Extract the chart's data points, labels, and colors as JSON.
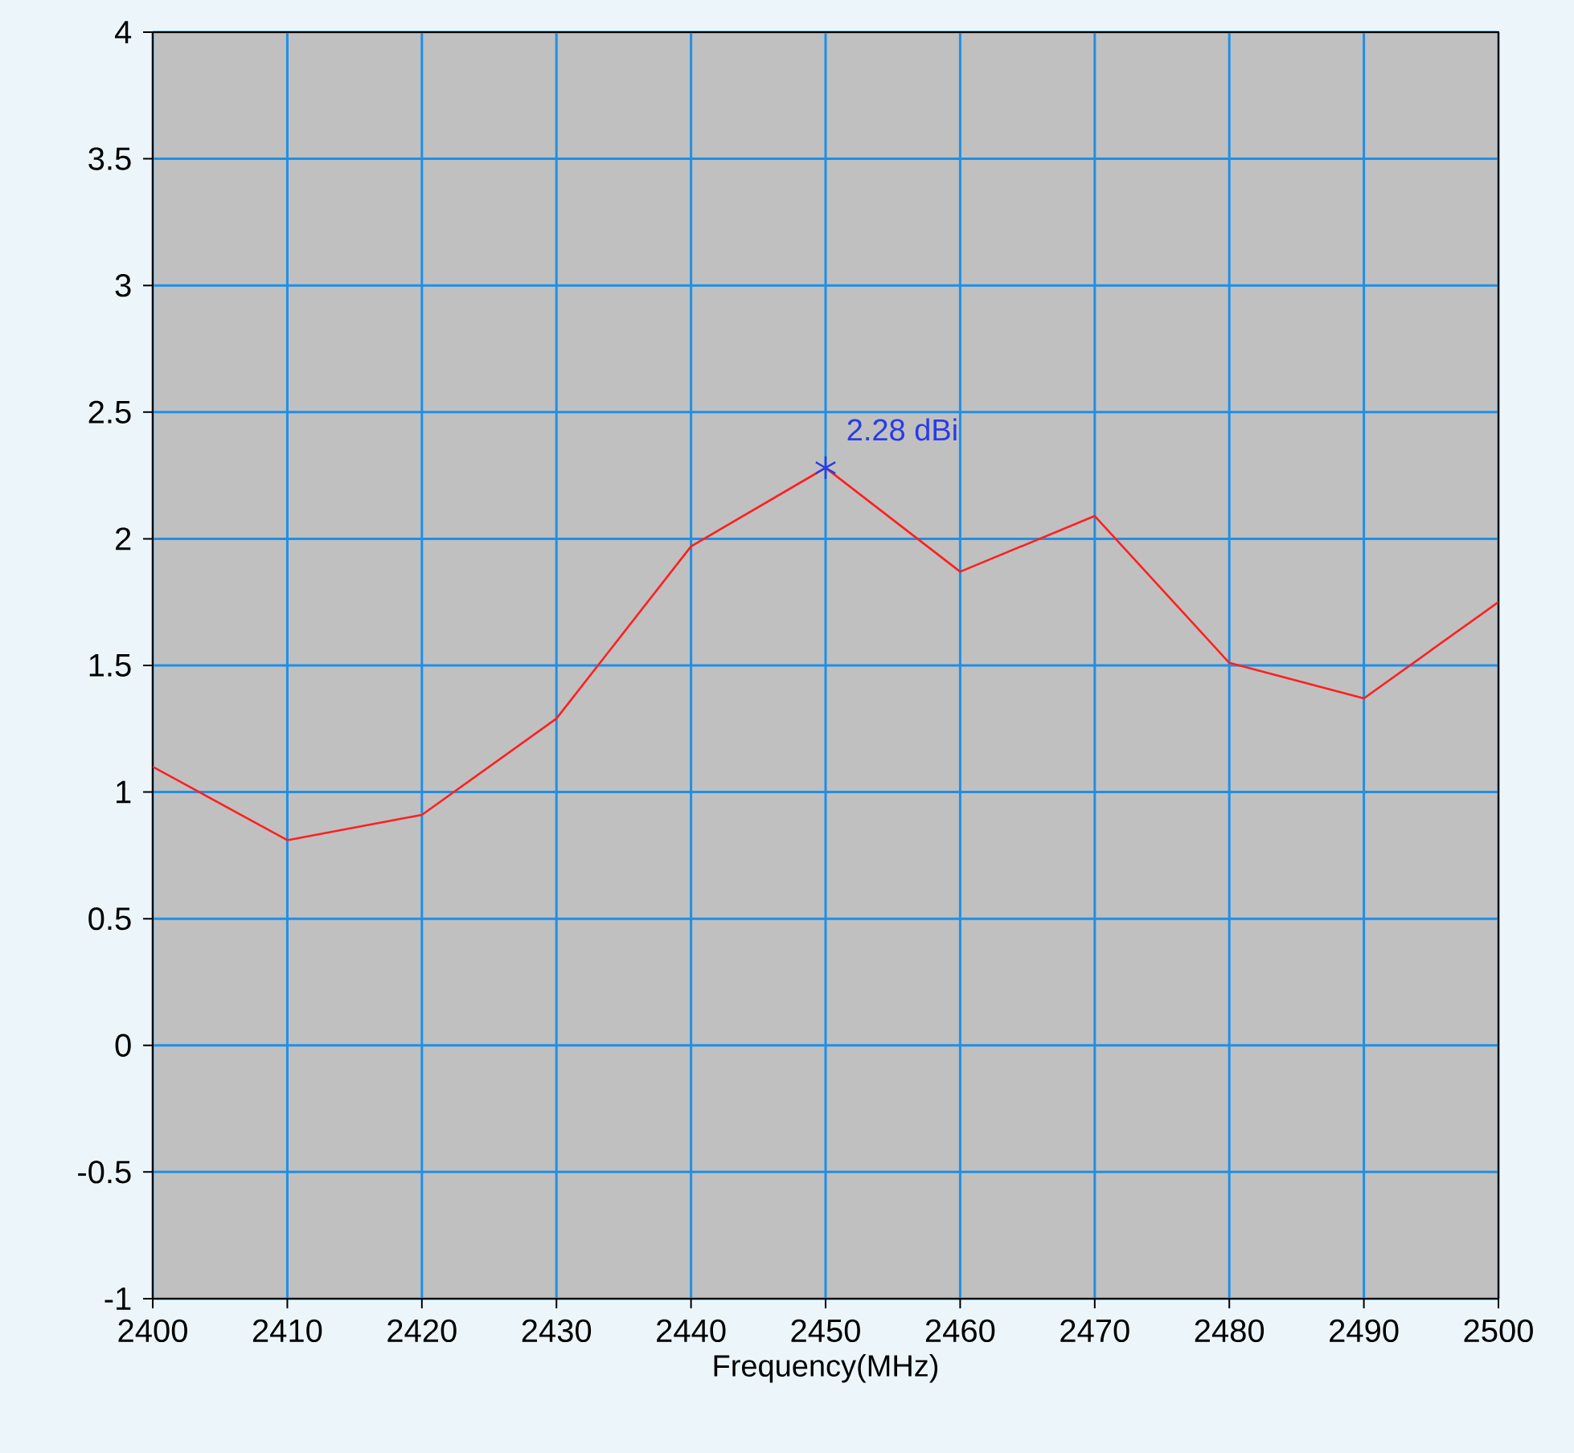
{
  "chart_data": {
    "type": "line",
    "xlabel": "Frequency(MHz)",
    "x": [
      2400,
      2410,
      2420,
      2430,
      2440,
      2450,
      2460,
      2470,
      2480,
      2490,
      2500
    ],
    "series": [
      {
        "color": "#ff2020",
        "values": [
          1.1,
          0.81,
          0.91,
          1.29,
          1.97,
          2.28,
          1.87,
          2.09,
          1.51,
          1.37,
          1.75
        ]
      }
    ],
    "xlim": [
      2400,
      2500
    ],
    "xticks": [
      2400,
      2410,
      2420,
      2430,
      2440,
      2450,
      2460,
      2470,
      2480,
      2490,
      2500
    ],
    "ylim": [
      -1,
      4
    ],
    "yticks": [
      -1,
      -0.5,
      0,
      0.5,
      1,
      1.5,
      2,
      2.5,
      3,
      3.5,
      4
    ],
    "grid": true,
    "marker": "none",
    "line_style": "solid",
    "annotations": [
      {
        "text": "2.28 dBi",
        "x": 2450,
        "y": 2.28
      }
    ]
  }
}
